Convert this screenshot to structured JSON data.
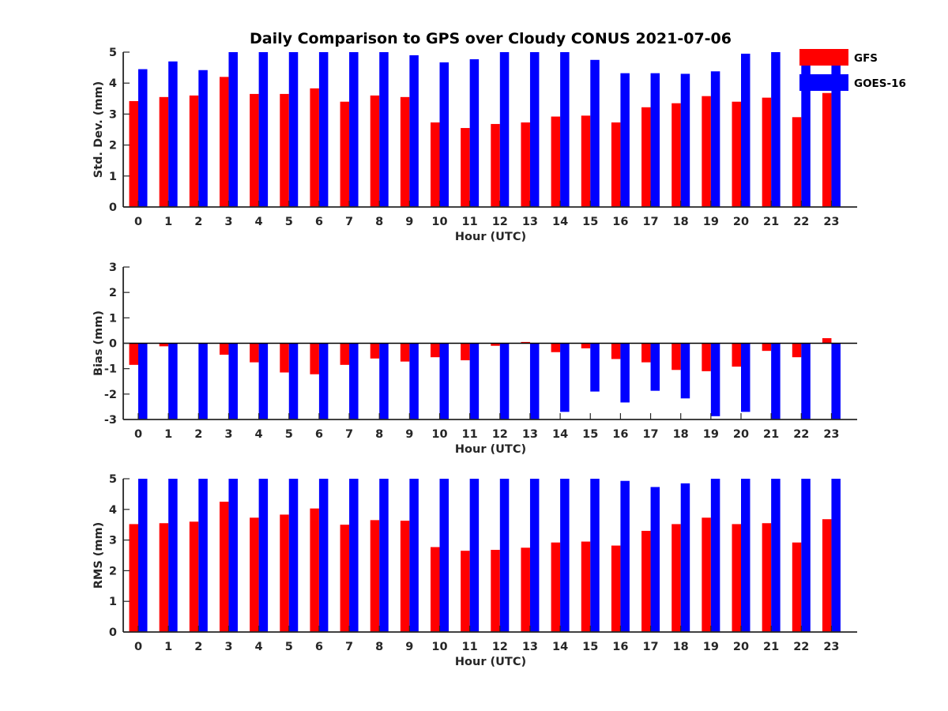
{
  "chart_data": {
    "title": "Daily Comparison to GPS over Cloudy CONUS 2021-07-06",
    "categories": [
      "0",
      "1",
      "2",
      "3",
      "4",
      "5",
      "6",
      "7",
      "8",
      "9",
      "10",
      "11",
      "12",
      "13",
      "14",
      "15",
      "16",
      "17",
      "18",
      "19",
      "20",
      "21",
      "22",
      "23"
    ],
    "legend": {
      "placement": "top-right",
      "entries": [
        {
          "name": "GFS",
          "color": "#ff0000"
        },
        {
          "name": "GOES-16",
          "color": "#0000ff"
        }
      ]
    },
    "charts": [
      {
        "type": "bar",
        "ylabel": "Std. Dev. (mm)",
        "xlabel": "Hour (UTC)",
        "ylim": [
          0,
          5
        ],
        "yticks": [
          "0",
          "1",
          "2",
          "3",
          "4",
          "5"
        ],
        "series": [
          {
            "name": "GFS",
            "color": "#ff0000",
            "values": [
              3.42,
              3.55,
              3.6,
              4.2,
              3.65,
              3.65,
              3.83,
              3.4,
              3.6,
              3.55,
              2.73,
              2.55,
              2.68,
              2.73,
              2.92,
              2.95,
              2.73,
              3.22,
              3.35,
              3.58,
              3.4,
              3.53,
              2.9,
              3.68
            ]
          },
          {
            "name": "GOES-16",
            "color": "#0000ff",
            "values": [
              4.45,
              4.7,
              4.42,
              5.2,
              5.2,
              5.2,
              5.2,
              5.2,
              5.2,
              4.9,
              4.67,
              4.77,
              5.2,
              5.2,
              5.2,
              4.75,
              4.32,
              4.32,
              4.3,
              4.38,
              4.95,
              5.2,
              4.8,
              4.8
            ]
          }
        ]
      },
      {
        "type": "bar",
        "ylabel": "Bias (mm)",
        "xlabel": "Hour (UTC)",
        "ylim": [
          -3,
          3
        ],
        "yticks": [
          "-3",
          "-2",
          "-1",
          "0",
          "1",
          "2",
          "3"
        ],
        "zero_line": true,
        "series": [
          {
            "name": "GFS",
            "color": "#ff0000",
            "values": [
              -0.85,
              -0.12,
              0.0,
              -0.45,
              -0.75,
              -1.15,
              -1.22,
              -0.85,
              -0.6,
              -0.72,
              -0.55,
              -0.67,
              -0.1,
              0.05,
              -0.35,
              -0.2,
              -0.62,
              -0.75,
              -1.05,
              -1.1,
              -0.92,
              -0.3,
              -0.55,
              0.2
            ]
          },
          {
            "name": "GOES-16",
            "color": "#0000ff",
            "values": [
              -3.3,
              -3.3,
              -3.3,
              -3.3,
              -3.3,
              -3.3,
              -3.3,
              -3.3,
              -3.3,
              -3.3,
              -3.3,
              -3.3,
              -3.3,
              -3.3,
              -2.7,
              -1.9,
              -2.33,
              -1.87,
              -2.17,
              -2.87,
              -2.7,
              -3.3,
              -3.3,
              -3.3
            ]
          }
        ]
      },
      {
        "type": "bar",
        "ylabel": "RMS (mm)",
        "xlabel": "Hour (UTC)",
        "ylim": [
          0,
          5
        ],
        "yticks": [
          "0",
          "1",
          "2",
          "3",
          "4",
          "5"
        ],
        "series": [
          {
            "name": "GFS",
            "color": "#ff0000",
            "values": [
              3.52,
              3.55,
              3.6,
              4.25,
              3.73,
              3.83,
              4.03,
              3.5,
              3.65,
              3.63,
              2.77,
              2.65,
              2.68,
              2.75,
              2.92,
              2.95,
              2.82,
              3.3,
              3.52,
              3.73,
              3.52,
              3.55,
              2.92,
              3.68
            ]
          },
          {
            "name": "GOES-16",
            "color": "#0000ff",
            "values": [
              5.2,
              5.2,
              5.2,
              5.2,
              5.2,
              5.2,
              5.2,
              5.2,
              5.2,
              5.2,
              5.2,
              5.2,
              5.2,
              5.2,
              5.2,
              5.2,
              4.93,
              4.73,
              4.85,
              5.2,
              5.2,
              5.2,
              5.2,
              5.2
            ]
          }
        ]
      }
    ]
  }
}
